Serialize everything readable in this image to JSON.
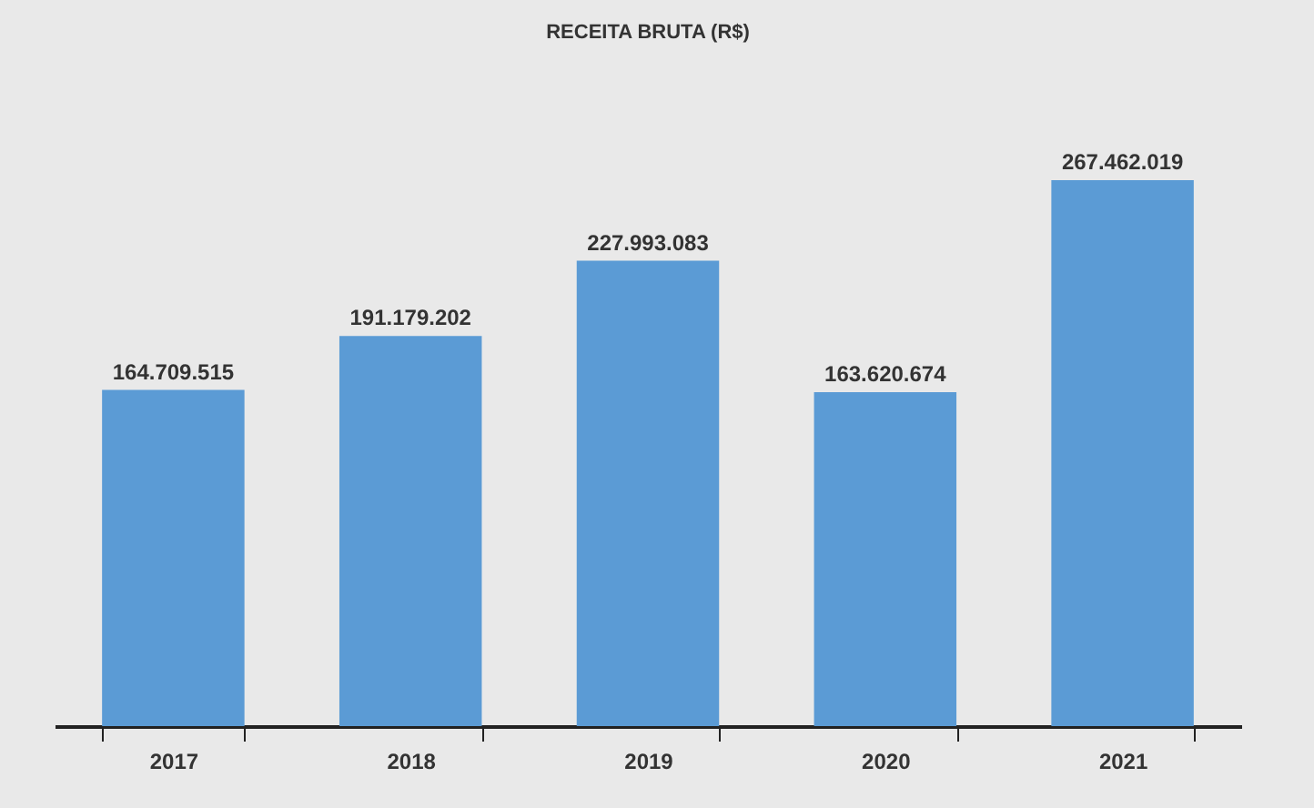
{
  "chart_data": {
    "type": "bar",
    "title": "RECEITA BRUTA (R$)",
    "categories": [
      "2017",
      "2018",
      "2019",
      "2020",
      "2021"
    ],
    "values": [
      164709515,
      191179202,
      227993083,
      163620674,
      267462019
    ],
    "value_labels": [
      "164.709.515",
      "191.179.202",
      "227.993.083",
      "163.620.674",
      "267.462.019"
    ],
    "color": "#5b9bd5",
    "grid": false
  }
}
